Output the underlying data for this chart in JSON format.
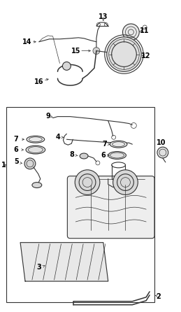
{
  "bg_color": "#ffffff",
  "border_color": "#333333",
  "line_color": "#333333",
  "label_color": "#000000",
  "fig_width": 2.59,
  "fig_height": 4.46,
  "dpi": 100
}
